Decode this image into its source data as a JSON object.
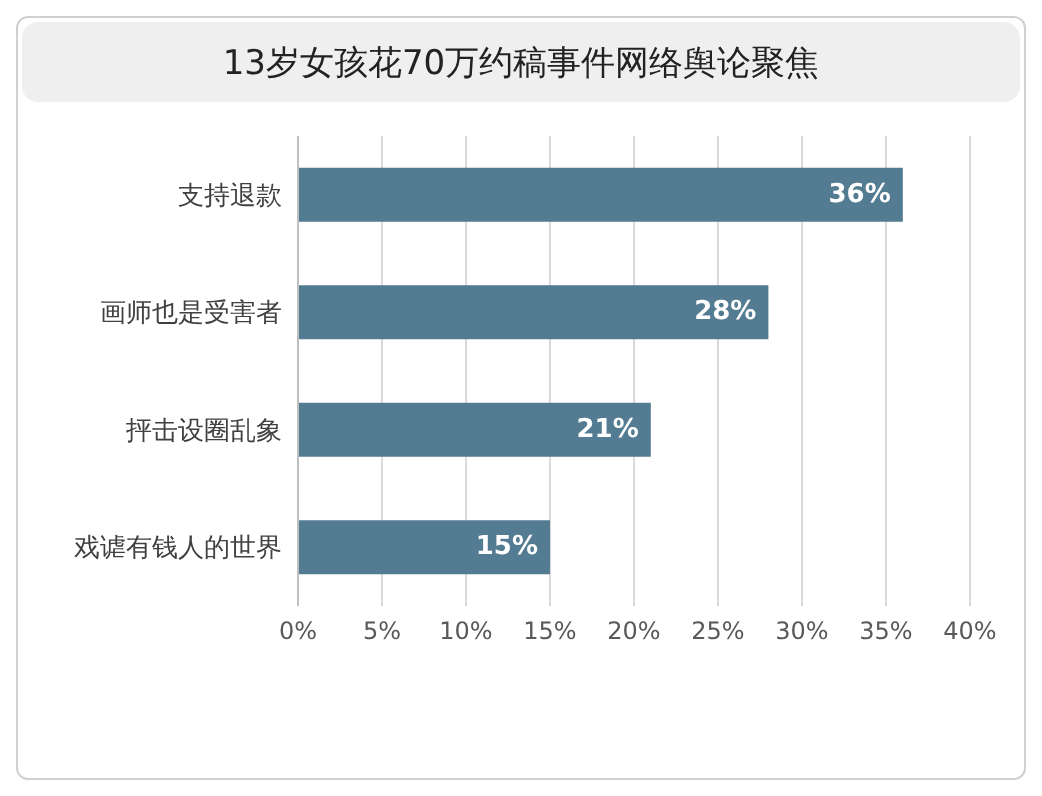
{
  "chart_data": {
    "type": "bar",
    "orientation": "horizontal",
    "title": "13岁女孩花70万约稿事件网络舆论聚焦",
    "categories": [
      "支持退款",
      "画师也是受害者",
      "抨击设圈乱象",
      "戏谑有钱人的世界"
    ],
    "values": [
      36,
      28,
      21,
      15
    ],
    "color": "#537b91",
    "value_labels": [
      "36%",
      "28%",
      "21%",
      "15%"
    ],
    "xlim": [
      0,
      40
    ],
    "xticks": [
      {
        "value": 0,
        "label": "0%"
      },
      {
        "value": 5,
        "label": "5%"
      },
      {
        "value": 10,
        "label": "10%"
      },
      {
        "value": 15,
        "label": "15%"
      },
      {
        "value": 20,
        "label": "20%"
      },
      {
        "value": 25,
        "label": "25%"
      },
      {
        "value": 30,
        "label": "30%"
      },
      {
        "value": 35,
        "label": "35%"
      },
      {
        "value": 40,
        "label": "40%"
      }
    ],
    "grid": "x"
  }
}
